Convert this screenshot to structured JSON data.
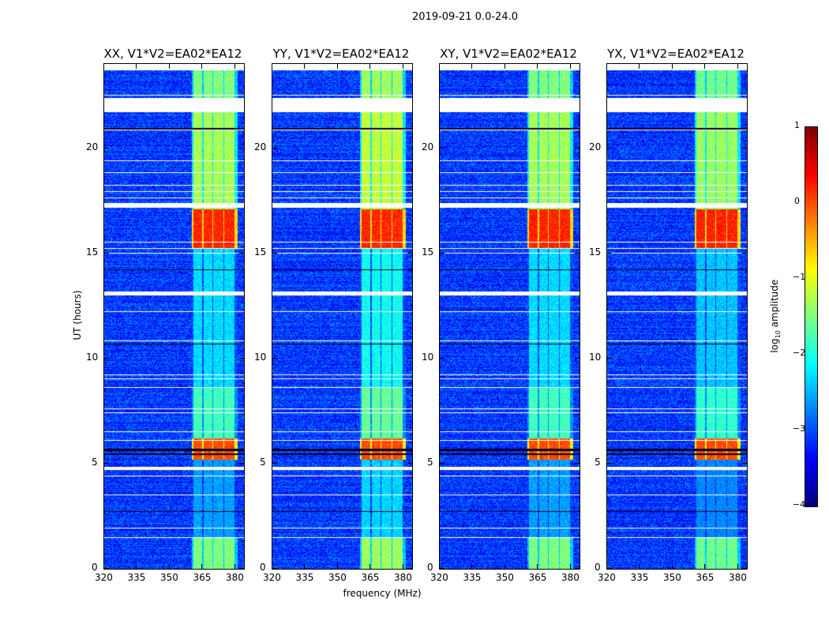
{
  "chart_data": {
    "type": "heatmap",
    "title": "2019-09-21 0.0-24.0",
    "xlabel": "frequency (MHz)",
    "ylabel": "UT (hours)",
    "xlim": [
      320,
      384
    ],
    "ylim": [
      0,
      24
    ],
    "xticks": [
      320,
      335,
      350,
      365,
      380
    ],
    "yticks": [
      0,
      5,
      10,
      15,
      20
    ],
    "panels": [
      {
        "title": "XX, V1*V2=EA02*EA12",
        "rfi_scale": 1.0
      },
      {
        "title": "YY, V1*V2=EA02*EA12",
        "rfi_scale": 1.1
      },
      {
        "title": "XY, V1*V2=EA02*EA12",
        "rfi_scale": 1.0
      },
      {
        "title": "YX, V1*V2=EA02*EA12",
        "rfi_scale": 0.95
      }
    ],
    "colorbar": {
      "label_main": "log",
      "label_sub": "10",
      "label_rest": " amplitude",
      "vmin": -4,
      "vmax": 1,
      "ticks": [
        1,
        0,
        -1,
        -2,
        -3,
        -4
      ],
      "colormap": "jet"
    },
    "data_extent_hours": [
      0,
      23.7
    ],
    "background_log_amplitude": -3.1,
    "rfi_channels_mhz": [
      [
        361,
        365
      ],
      [
        365.5,
        369.5
      ],
      [
        370,
        374.5
      ],
      [
        375,
        379.5
      ]
    ],
    "rfi_levels": [
      {
        "hours": [
          0,
          1.5
        ],
        "level": -1.5
      },
      {
        "hours": [
          1.5,
          5.2
        ],
        "level": -2.6
      },
      {
        "hours": [
          5.2,
          6.2
        ],
        "level": 0.0
      },
      {
        "hours": [
          6.2,
          8.6
        ],
        "level": -1.8
      },
      {
        "hours": [
          8.6,
          15.2
        ],
        "level": -2.3
      },
      {
        "hours": [
          15.2,
          17.1
        ],
        "level": 0.2
      },
      {
        "hours": [
          17.1,
          21.7
        ],
        "level": -1.3
      },
      {
        "hours": [
          21.7,
          23.7
        ],
        "level": -1.5
      }
    ],
    "blank_intervals_hours": [
      [
        21.7,
        22.4
      ],
      [
        22.5,
        22.55
      ],
      [
        20.85,
        20.9
      ],
      [
        19.38,
        19.42
      ],
      [
        18.8,
        18.84
      ],
      [
        18.2,
        18.24
      ],
      [
        17.9,
        17.94
      ],
      [
        17.6,
        17.64
      ],
      [
        17.15,
        17.4
      ],
      [
        15.5,
        15.54
      ],
      [
        15.2,
        15.24
      ],
      [
        15.0,
        15.04
      ],
      [
        13.0,
        13.2
      ],
      [
        12.2,
        12.25
      ],
      [
        10.8,
        10.84
      ],
      [
        9.2,
        9.24
      ],
      [
        9.0,
        9.04
      ],
      [
        8.6,
        8.64
      ],
      [
        7.6,
        7.64
      ],
      [
        7.4,
        7.44
      ],
      [
        6.5,
        6.54
      ],
      [
        6.1,
        6.14
      ],
      [
        4.7,
        4.85
      ],
      [
        4.4,
        4.44
      ],
      [
        3.5,
        3.54
      ],
      [
        1.9,
        1.94
      ],
      [
        1.45,
        1.5
      ]
    ],
    "flagged_dark_hours": [
      [
        20.9,
        20.95
      ],
      [
        14.2,
        14.24
      ],
      [
        10.65,
        10.72
      ],
      [
        5.4,
        5.5
      ],
      [
        5.6,
        5.7
      ],
      [
        2.7,
        2.74
      ]
    ]
  }
}
